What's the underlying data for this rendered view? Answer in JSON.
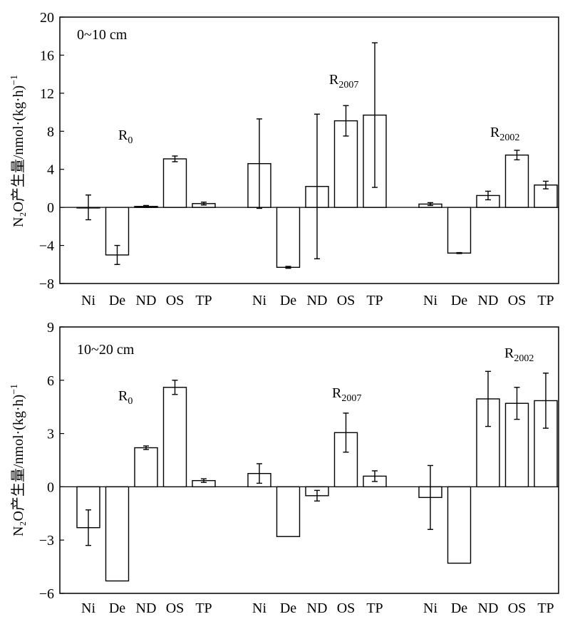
{
  "figure": {
    "y_axis_label_main": "N₂O产生量/nmol·(kg·h)",
    "y_axis_label_exp": "−1"
  },
  "chart_data": [
    {
      "type": "bar",
      "panel_label": "0~10 cm",
      "ylim": [
        -8,
        20
      ],
      "yticks": [
        -8,
        -4,
        0,
        4,
        8,
        12,
        16,
        20
      ],
      "grid": false,
      "ylabel": "N₂O产生量/nmol·(kg·h)⁻¹",
      "groups": [
        {
          "label_main": "R",
          "label_sub": "0",
          "categories": [
            "Ni",
            "De",
            "ND",
            "OS",
            "TP"
          ],
          "values": [
            0.0,
            -5.0,
            0.1,
            5.1,
            0.4
          ],
          "errors": [
            1.3,
            1.0,
            0.1,
            0.3,
            0.15
          ]
        },
        {
          "label_main": "R",
          "label_sub": "2007",
          "categories": [
            "Ni",
            "De",
            "ND",
            "OS",
            "TP"
          ],
          "values": [
            4.6,
            -6.3,
            2.2,
            9.1,
            9.7
          ],
          "errors": [
            4.7,
            0.1,
            7.6,
            1.6,
            7.6
          ]
        },
        {
          "label_main": "R",
          "label_sub": "2002",
          "categories": [
            "Ni",
            "De",
            "ND",
            "OS",
            "TP"
          ],
          "values": [
            0.35,
            -4.8,
            1.25,
            5.5,
            2.35
          ],
          "errors": [
            0.15,
            0.05,
            0.45,
            0.5,
            0.4
          ]
        }
      ]
    },
    {
      "type": "bar",
      "panel_label": "10~20 cm",
      "ylim": [
        -6,
        9
      ],
      "yticks": [
        -6,
        -3,
        0,
        3,
        6,
        9
      ],
      "grid": false,
      "ylabel": "N₂O产生量/nmol·(kg·h)⁻¹",
      "groups": [
        {
          "label_main": "R",
          "label_sub": "0",
          "categories": [
            "Ni",
            "De",
            "ND",
            "OS",
            "TP"
          ],
          "values": [
            -2.3,
            -5.3,
            2.2,
            5.6,
            0.35
          ],
          "errors": [
            1.0,
            0.0,
            0.1,
            0.4,
            0.1
          ]
        },
        {
          "label_main": "R",
          "label_sub": "2007",
          "categories": [
            "Ni",
            "De",
            "ND",
            "OS",
            "TP"
          ],
          "values": [
            0.75,
            -2.8,
            -0.5,
            3.05,
            0.6
          ],
          "errors": [
            0.55,
            0.0,
            0.3,
            1.1,
            0.3
          ]
        },
        {
          "label_main": "R",
          "label_sub": "2002",
          "categories": [
            "Ni",
            "De",
            "ND",
            "OS",
            "TP"
          ],
          "values": [
            -0.6,
            -4.3,
            4.95,
            4.7,
            4.85
          ],
          "errors": [
            1.8,
            0.0,
            1.55,
            0.9,
            1.55
          ]
        }
      ]
    }
  ]
}
